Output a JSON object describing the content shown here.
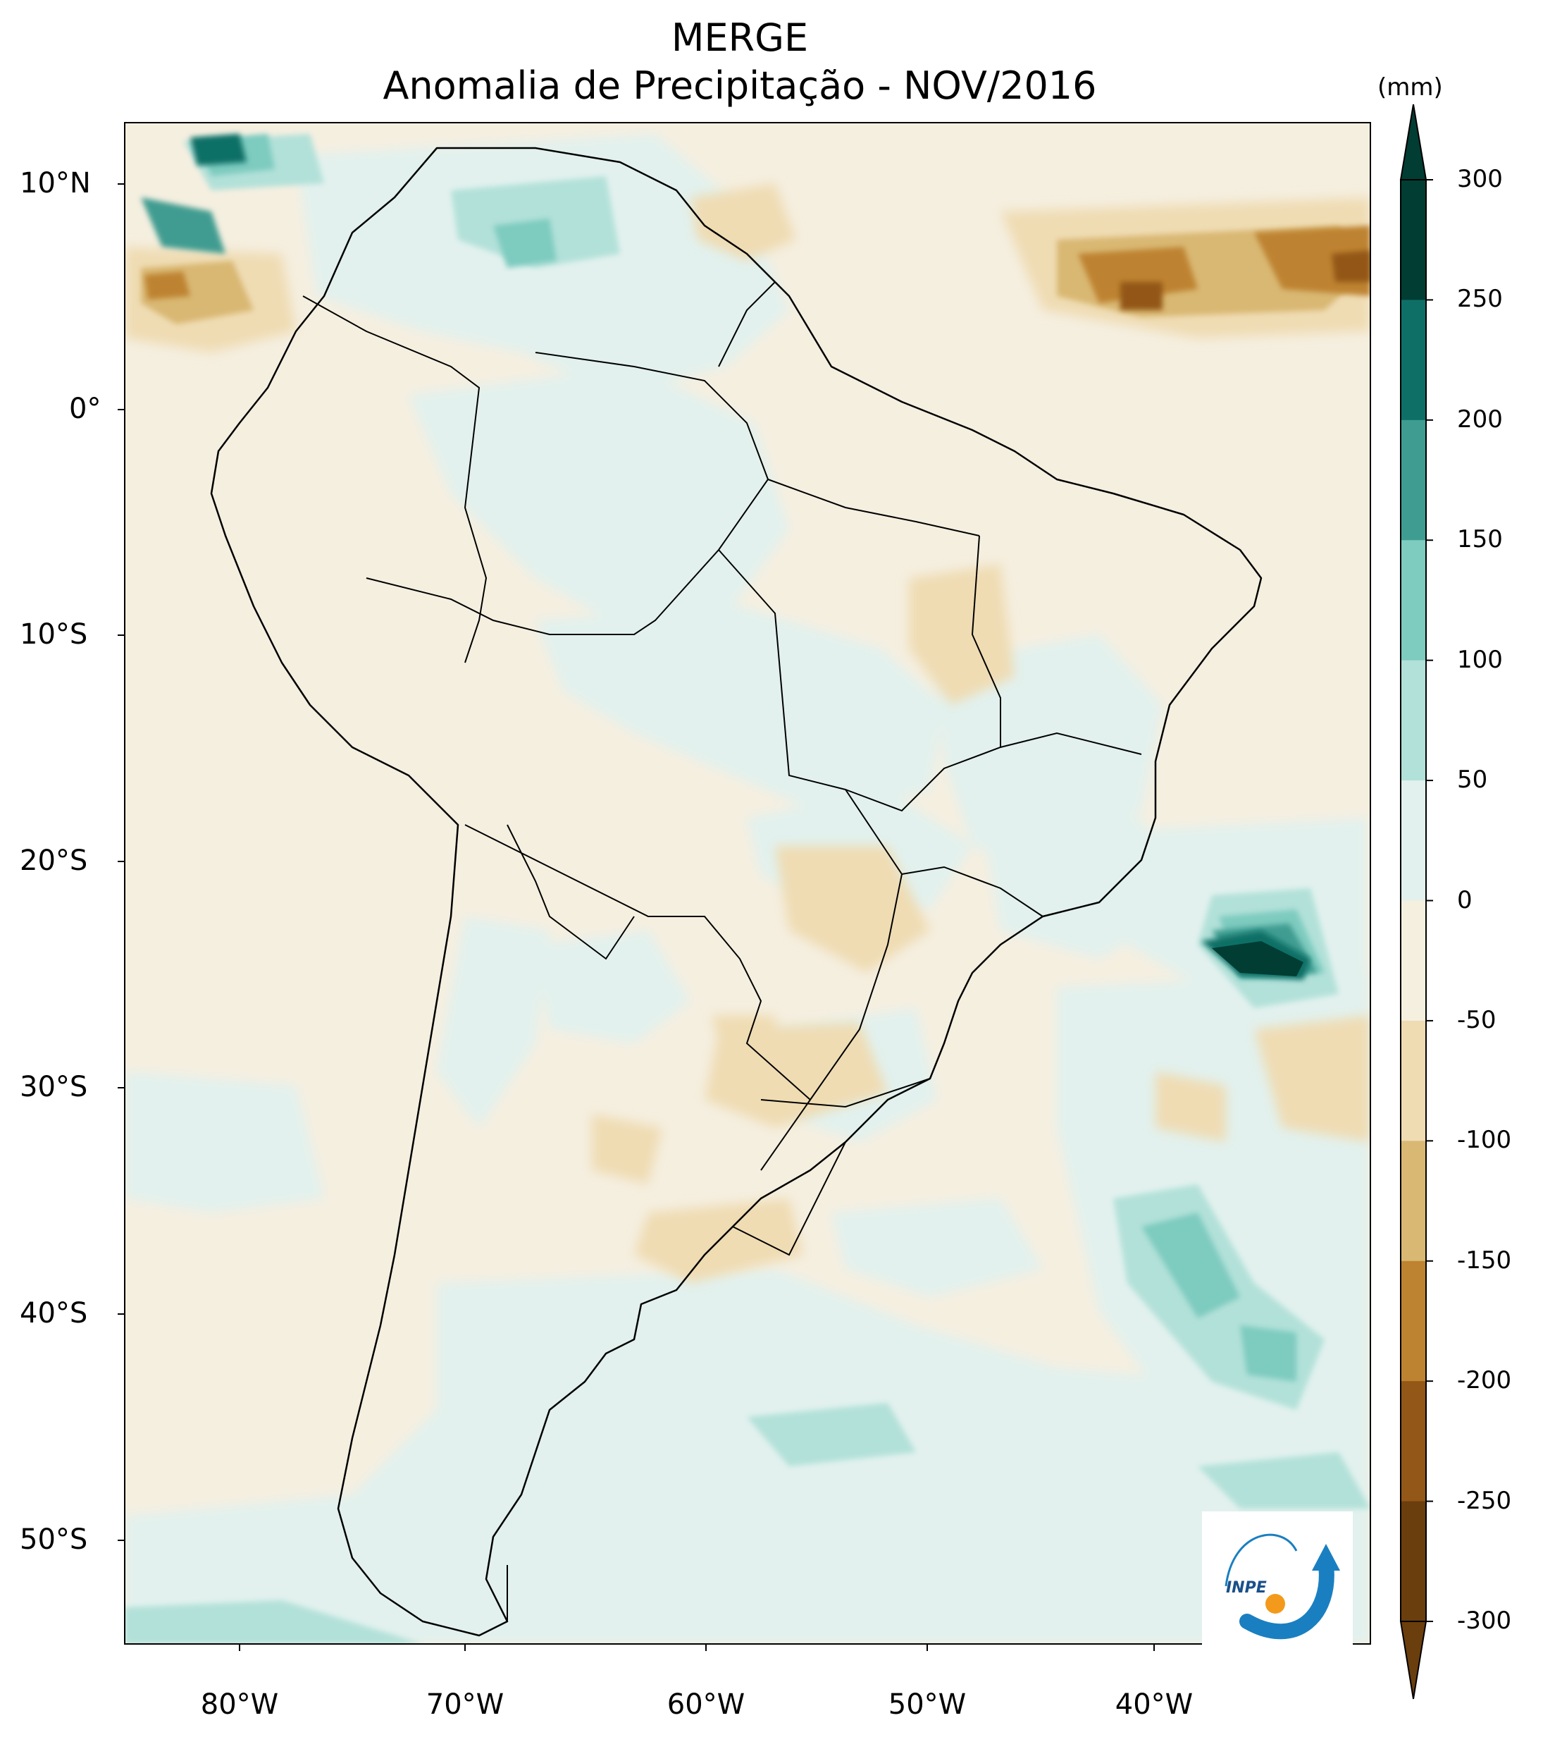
{
  "title": "MERGE",
  "subtitle": "Anomalia de Precipitação - NOV/2016",
  "colorbar": {
    "unit": "(mm)",
    "labels": [
      "300",
      "250",
      "200",
      "150",
      "100",
      "50",
      "0",
      "-50",
      "-100",
      "-150",
      "-200",
      "-250",
      "-300"
    ],
    "colors": [
      "#013d33",
      "#0e6f66",
      "#3f9c91",
      "#7ecbbf",
      "#b2e1d9",
      "#e2f1ee",
      "#f5efe0",
      "#efdcb3",
      "#d9b873",
      "#be8330",
      "#935717",
      "#6a3e0d"
    ]
  },
  "axes": {
    "lat_labels": [
      "10°N",
      "0°",
      "10°S",
      "20°S",
      "30°S",
      "40°S",
      "50°S"
    ],
    "lon_labels": [
      "80°W",
      "70°W",
      "60°W",
      "50°W",
      "40°W"
    ]
  },
  "logo": {
    "text": "INPE",
    "arrow_color": "#1a7fc1",
    "dot_color": "#f39a1c"
  }
}
